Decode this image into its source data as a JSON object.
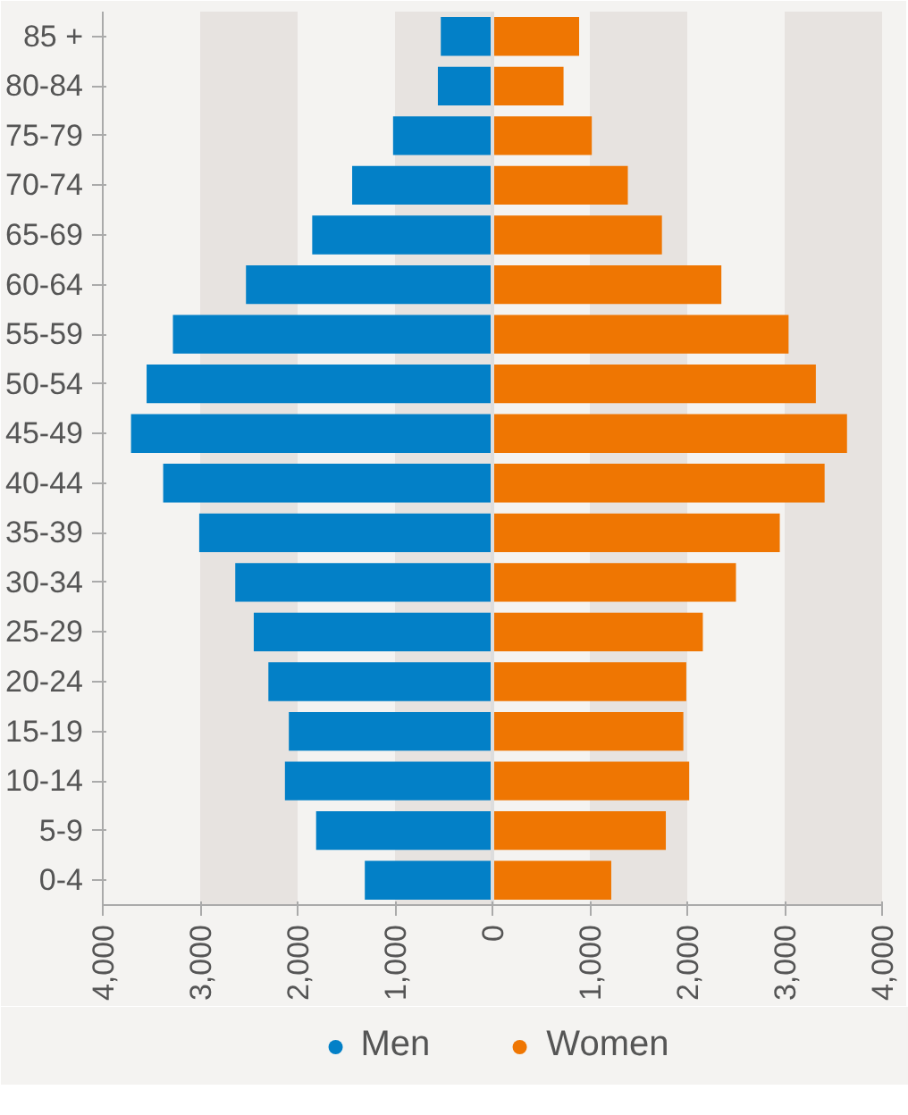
{
  "chart_data": {
    "type": "bar",
    "orientation": "horizontal",
    "stacked": true,
    "categories": [
      "85 +",
      "80-84",
      "75-79",
      "70-74",
      "65-69",
      "60-64",
      "55-59",
      "50-54",
      "45-49",
      "40-44",
      "35-39",
      "30-34",
      "25-29",
      "20-24",
      "15-19",
      "10-14",
      "5-9",
      "0-4"
    ],
    "series": [
      {
        "name": "Men",
        "color": "#0380c7",
        "values": [
          -530,
          -560,
          -1020,
          -1440,
          -1850,
          -2530,
          -3280,
          -3550,
          -3710,
          -3380,
          -3010,
          -2640,
          -2450,
          -2300,
          -2090,
          -2130,
          -1810,
          -1310
        ]
      },
      {
        "name": "Women",
        "color": "#ef7602",
        "values": [
          890,
          730,
          1020,
          1390,
          1740,
          2350,
          3040,
          3320,
          3640,
          3410,
          2950,
          2500,
          2160,
          1990,
          1960,
          2020,
          1780,
          1220
        ]
      }
    ],
    "xlim": [
      -4000,
      4000
    ],
    "xticks": [
      {
        "value": -4000,
        "label": "4,000"
      },
      {
        "value": -3000,
        "label": "3,000"
      },
      {
        "value": -2000,
        "label": "2,000"
      },
      {
        "value": -1000,
        "label": "1,000"
      },
      0,
      {
        "value": 1000,
        "label": "1,000"
      },
      {
        "value": 2000,
        "label": "2,000"
      },
      {
        "value": 3000,
        "label": "3,000"
      },
      {
        "value": 4000,
        "label": "4,000"
      }
    ],
    "grid": "x",
    "legend": "bottom"
  }
}
